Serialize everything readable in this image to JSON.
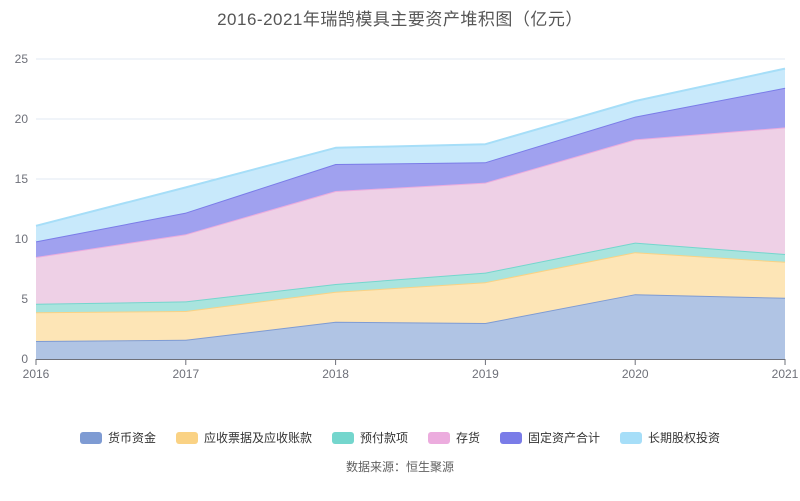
{
  "title": "2016-2021年瑞鹄模具主要资产堆积图（亿元）",
  "source": "数据来源：恒生聚源",
  "chart_data": {
    "type": "area",
    "stacked": true,
    "title": "2016-2021年瑞鹄模具主要资产堆积图（亿元）",
    "x": [
      2016,
      2017,
      2018,
      2019,
      2020,
      2021
    ],
    "series": [
      {
        "name": "货币资金",
        "values": [
          1.5,
          1.6,
          3.1,
          3.0,
          5.4,
          5.1
        ],
        "color": "#7e9bd3",
        "fill": "#b0c4e4"
      },
      {
        "name": "应收票据及应收账款",
        "values": [
          2.4,
          2.4,
          2.5,
          3.4,
          3.5,
          3.0
        ],
        "color": "#fad284",
        "fill": "#fde5b6"
      },
      {
        "name": "预付款项",
        "values": [
          0.7,
          0.8,
          0.65,
          0.8,
          0.8,
          0.65
        ],
        "color": "#74d6cd",
        "fill": "#a9e4de"
      },
      {
        "name": "存货",
        "values": [
          3.9,
          5.6,
          7.75,
          7.5,
          8.6,
          10.55
        ],
        "color": "#ecacde",
        "fill": "#eed0e6"
      },
      {
        "name": "固定资产合计",
        "values": [
          1.3,
          1.8,
          2.25,
          1.7,
          1.9,
          3.3
        ],
        "color": "#7a7ce8",
        "fill": "#a0a1ef"
      },
      {
        "name": "长期股权投资",
        "values": [
          1.3,
          2.1,
          1.35,
          1.5,
          1.3,
          1.6
        ],
        "color": "#a6def8",
        "fill": "#c8e9fb"
      }
    ],
    "cumulative_totals": [
      11.1,
      14.3,
      17.6,
      17.9,
      21.5,
      24.2
    ],
    "xlabel": "",
    "ylabel": "",
    "ylim": [
      0,
      25
    ],
    "yticks": [
      0,
      5,
      10,
      15,
      20,
      25
    ],
    "grid": true,
    "legend_position": "bottom",
    "axis_color": "#6E7079",
    "grid_color": "#e2e8f3"
  }
}
